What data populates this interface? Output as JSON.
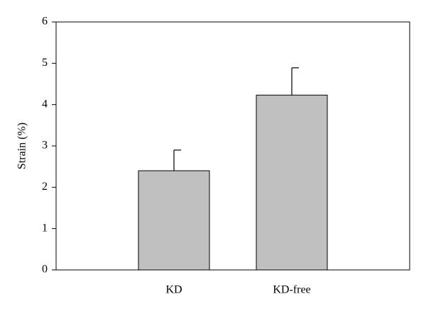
{
  "chart_data": {
    "type": "bar",
    "ylabel": "Strain (%)",
    "categories": [
      "KD",
      "KD-free"
    ],
    "values": [
      2.4,
      4.23
    ],
    "errors": [
      0.5,
      0.66
    ],
    "color": "#c0c0c0",
    "ylim": [
      0,
      6
    ],
    "yticks": [
      0,
      1,
      2,
      3,
      4,
      5,
      6
    ],
    "grid": false
  }
}
